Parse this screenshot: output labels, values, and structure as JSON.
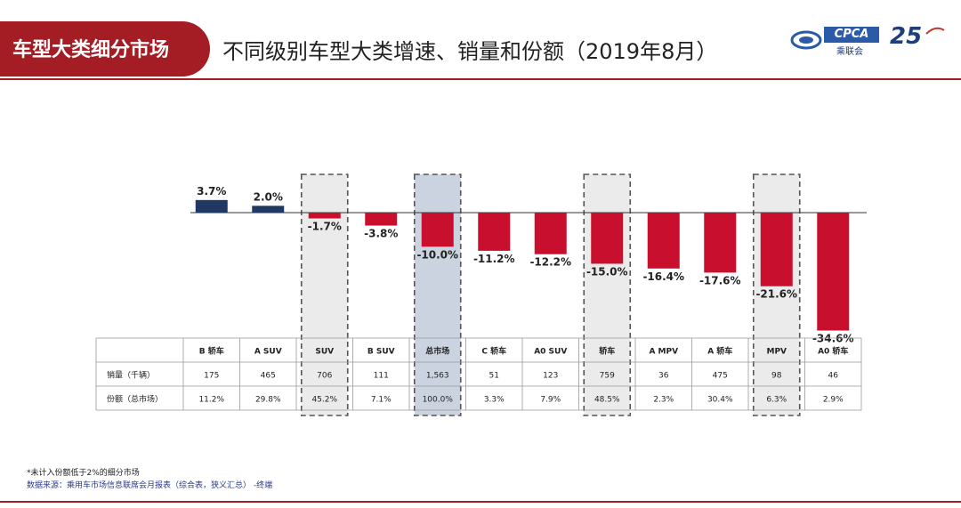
{
  "header": {
    "section_label": "车型大类细分市场",
    "title": "不同级别车型大类增速、销量和份额（2019年8月）"
  },
  "logos": {
    "cpca_brand": "CPCA",
    "cpca_sub": "乘联会",
    "anniversary_number": "25"
  },
  "chart_data": {
    "type": "bar",
    "categories": [
      "B 轿车",
      "A SUV",
      "SUV",
      "B SUV",
      "总市场",
      "C 轿车",
      "A0 SUV",
      "轿车",
      "A MPV",
      "A 轿车",
      "MPV",
      "A0 轿车"
    ],
    "values": [
      3.7,
      2.0,
      -1.7,
      -3.8,
      -10.0,
      -11.2,
      -12.2,
      -15.0,
      -16.4,
      -17.6,
      -21.6,
      -34.6
    ],
    "value_labels": [
      "3.7%",
      "2.0%",
      "-1.7%",
      "-3.8%",
      "-10.0%",
      "-11.2%",
      "-12.2%",
      "-15.0%",
      "-16.4%",
      "-17.6%",
      "-21.6%",
      "-34.6%"
    ],
    "unit": "%",
    "highlighted_categories": [
      "SUV",
      "总市场",
      "轿车",
      "MPV"
    ],
    "colors": {
      "positive": "#1f3864",
      "negative": "#c8102e",
      "highlight_fill": "#ebebeb",
      "total_fill": "#ccd3e0"
    },
    "table": {
      "row_labels": [
        "销量（千辆）",
        "份额（总市场）"
      ],
      "rows": [
        [
          "175",
          "465",
          "706",
          "111",
          "1,563",
          "51",
          "123",
          "759",
          "36",
          "475",
          "98",
          "46"
        ],
        [
          "11.2%",
          "29.8%",
          "45.2%",
          "7.1%",
          "100.0%",
          "3.3%",
          "7.9%",
          "48.5%",
          "2.3%",
          "30.4%",
          "6.3%",
          "2.9%"
        ]
      ]
    }
  },
  "footnote": "*未计入份额低于2%的细分市场",
  "source": "数据来源：乘用车市场信息联席会月报表（综合表，狭义汇总）  -终端"
}
